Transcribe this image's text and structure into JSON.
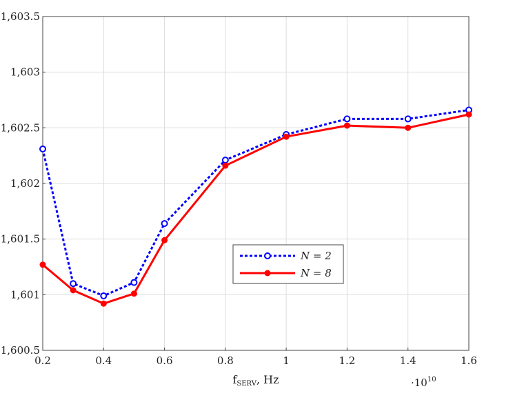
{
  "chart_data": {
    "type": "line",
    "title": "",
    "xlabel": "f",
    "xlabel_sub": "SERV",
    "xlabel_unit": ", Hz",
    "x_multiplier": "·10",
    "x_multiplier_exp": "10",
    "xlim": [
      0.2,
      1.6
    ],
    "ylim": [
      1600.5,
      1603.5
    ],
    "xticks": [
      0.2,
      0.4,
      0.6,
      0.8,
      1,
      1.2,
      1.4,
      1.6
    ],
    "xtick_labels": [
      "0.2",
      "0.4",
      "0.6",
      "0.8",
      "1",
      "1.2",
      "1.4",
      "1.6"
    ],
    "yticks": [
      1600.5,
      1601,
      1601.5,
      1602,
      1602.5,
      1603,
      1603.5
    ],
    "ytick_labels": [
      "1,600.5",
      "1,601",
      "1,601.5",
      "1,602",
      "1,602.5",
      "1,603",
      "1,603.5"
    ],
    "grid": true,
    "legend_position": "center",
    "x": [
      0.2,
      0.3,
      0.4,
      0.5,
      0.6,
      0.8,
      1.0,
      1.2,
      1.4,
      1.6
    ],
    "series": [
      {
        "name": "N = 2",
        "color": "#0000ff",
        "style": "dotted",
        "marker": "open-circle",
        "values": [
          1602.31,
          1601.1,
          1600.99,
          1601.11,
          1601.64,
          1602.21,
          1602.44,
          1602.58,
          1602.58,
          1602.66
        ]
      },
      {
        "name": "N = 8",
        "color": "#ff0000",
        "style": "solid",
        "marker": "filled-circle",
        "values": [
          1601.27,
          1601.04,
          1600.92,
          1601.01,
          1601.49,
          1602.16,
          1602.42,
          1602.52,
          1602.5,
          1602.62
        ]
      }
    ]
  }
}
